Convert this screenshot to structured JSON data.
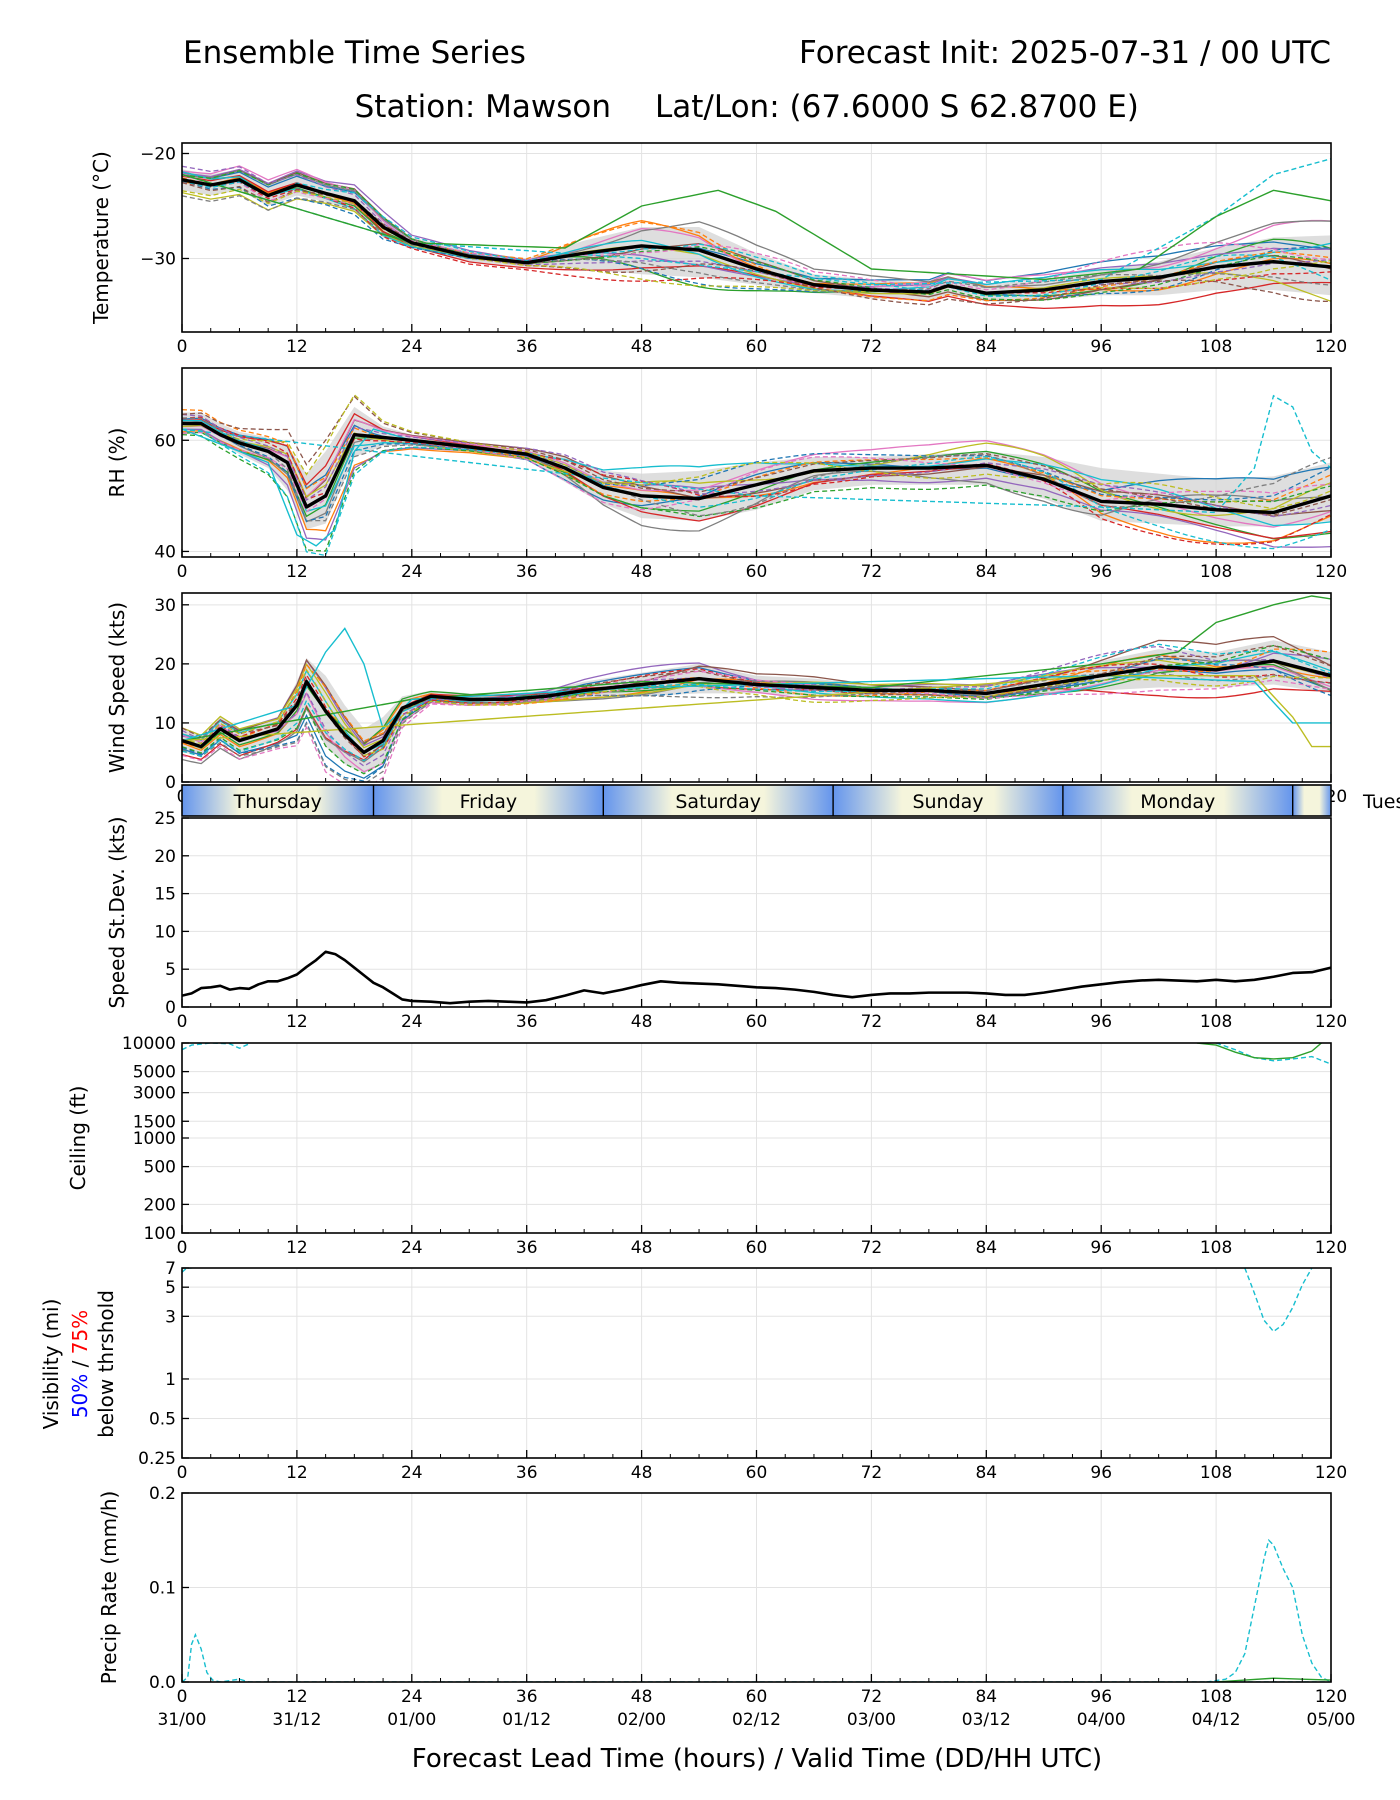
{
  "header": {
    "title_left": "Ensemble Time Series",
    "title_right": "Forecast Init: 2025-07-31 / 00 UTC",
    "station": "Station: Mawson",
    "latlon": "Lat/Lon: (67.6000 S 62.8700 E)"
  },
  "colors": {
    "mean": "#000000",
    "spread_band": "#d3d3d3",
    "members": [
      "#1f77b4",
      "#ff7f0e",
      "#2ca02c",
      "#d62728",
      "#9467bd",
      "#8c564b",
      "#e377c2",
      "#7f7f7f",
      "#bcbd22",
      "#17becf"
    ],
    "day_band_light": "#f5f5dc",
    "day_band_dark": "#6495ed",
    "visibility_50": "#0000ff",
    "visibility_75": "#ff0000"
  },
  "xaxis": {
    "label": "Forecast Lead Time (hours) / Valid Time (DD/HH UTC)",
    "range": [
      0,
      120
    ],
    "ticks": [
      0,
      12,
      24,
      36,
      48,
      60,
      72,
      84,
      96,
      108,
      120
    ],
    "tick_labels": [
      "0",
      "12",
      "24",
      "36",
      "48",
      "60",
      "72",
      "84",
      "96",
      "108",
      "120"
    ],
    "valid_labels": [
      "31/00",
      "31/12",
      "01/00",
      "01/12",
      "02/00",
      "02/12",
      "03/00",
      "03/12",
      "04/00",
      "04/12",
      "05/00"
    ]
  },
  "day_bar": {
    "days": [
      {
        "label": "Thursday",
        "start": 0,
        "end": 20
      },
      {
        "label": "Friday",
        "start": 20,
        "end": 44
      },
      {
        "label": "Saturday",
        "start": 44,
        "end": 68
      },
      {
        "label": "Sunday",
        "start": 68,
        "end": 92
      },
      {
        "label": "Monday",
        "start": 92,
        "end": 116
      },
      {
        "label": "Tues",
        "start": 116,
        "end": 140
      }
    ]
  },
  "chart_data": [
    {
      "type": "line",
      "ylabel": "Temperature (°C)",
      "ylim": [
        -37,
        -19
      ],
      "yticks": [
        -30,
        -20
      ],
      "ytick_labels": [
        "−30",
        "−20"
      ],
      "grid": true,
      "members": 20,
      "mean": {
        "x": [
          0,
          3,
          6,
          9,
          12,
          15,
          18,
          21,
          24,
          30,
          36,
          42,
          48,
          54,
          60,
          66,
          72,
          78,
          80,
          84,
          90,
          96,
          102,
          108,
          114,
          120
        ],
        "y": [
          -22.5,
          -23,
          -22.5,
          -24,
          -23,
          -23.8,
          -24.5,
          -27,
          -28.5,
          -29.8,
          -30.4,
          -29.5,
          -28.8,
          -29.2,
          -31,
          -32.5,
          -33,
          -33.2,
          -32.6,
          -33.3,
          -33,
          -32.2,
          -31.8,
          -30.8,
          -30.3,
          -30.8
        ]
      },
      "spread_low": [
        -23.5,
        -24,
        -23.5,
        -25,
        -24,
        -24.6,
        -25.5,
        -28,
        -29,
        -30.3,
        -30.8,
        -31,
        -31.5,
        -31.8,
        -32.5,
        -33.3,
        -33.8,
        -34,
        -33.5,
        -34,
        -34,
        -33.5,
        -33.5,
        -33,
        -33,
        -33.5
      ],
      "spread_high": [
        -21.5,
        -22,
        -21.5,
        -23,
        -22,
        -23,
        -23.5,
        -26,
        -28,
        -29.3,
        -30,
        -28.3,
        -27,
        -27,
        -29.5,
        -31.5,
        -32,
        -32.3,
        -31.8,
        -32.5,
        -32,
        -31,
        -30.3,
        -29,
        -28,
        -27.8
      ],
      "notable_members": [
        {
          "color": "#17becf",
          "dashed": true,
          "x": [
            0,
            24,
            48,
            72,
            96,
            102,
            108,
            114,
            120
          ],
          "y": [
            -22,
            -28.5,
            -30,
            -32.5,
            -32,
            -29,
            -26,
            -22,
            -20.5
          ]
        },
        {
          "color": "#2ca02c",
          "dashed": false,
          "x": [
            0,
            24,
            40,
            48,
            56,
            62,
            72,
            90,
            100,
            108,
            114,
            120
          ],
          "y": [
            -22,
            -28.5,
            -29,
            -25,
            -23.5,
            -25.5,
            -31,
            -32,
            -31,
            -26,
            -23.5,
            -24.5
          ]
        }
      ]
    },
    {
      "type": "line",
      "ylabel": "RH (%)",
      "ylim": [
        39,
        73
      ],
      "yticks": [
        40,
        60
      ],
      "ytick_labels": [
        "40",
        "60"
      ],
      "grid": true,
      "members": 20,
      "mean": {
        "x": [
          0,
          2,
          4,
          6,
          9,
          11,
          13,
          15,
          18,
          21,
          24,
          30,
          36,
          40,
          44,
          48,
          54,
          60,
          66,
          72,
          78,
          84,
          90,
          96,
          102,
          108,
          114,
          120
        ],
        "y": [
          63,
          63,
          61,
          59.5,
          58,
          56,
          48,
          50,
          61,
          60.5,
          60,
          58.8,
          57.5,
          55,
          51.5,
          50,
          49.5,
          52,
          54.5,
          55,
          55,
          55.5,
          53,
          49,
          48.5,
          47.5,
          47,
          50
        ]
      },
      "spread_low": [
        61.5,
        61.5,
        59.5,
        57.5,
        55,
        51,
        44,
        45,
        57,
        59,
        59,
        58,
        56.5,
        52.5,
        48.5,
        46,
        45.5,
        47.5,
        51,
        52,
        52,
        52,
        49.5,
        45.5,
        45,
        44.5,
        44.5,
        45.5
      ],
      "spread_high": [
        65,
        65,
        63,
        61.5,
        60.5,
        59,
        54,
        58,
        66,
        62.5,
        61,
        59.5,
        58.5,
        57,
        54.5,
        54,
        54.5,
        56,
        57,
        57,
        57.5,
        58,
        57,
        55,
        54,
        53,
        53.5,
        56
      ],
      "notable_members": [
        {
          "color": "#17becf",
          "dashed": true,
          "x": [
            0,
            60,
            96,
            108,
            112,
            114,
            116,
            118,
            120
          ],
          "y": [
            62,
            50,
            48,
            47,
            55,
            68,
            66,
            58,
            55
          ]
        },
        {
          "color": "#17becf",
          "dashed": false,
          "x": [
            0,
            9,
            12,
            14,
            16,
            18,
            20,
            24
          ],
          "y": [
            62,
            56,
            43,
            41,
            44,
            58,
            62,
            60
          ]
        }
      ]
    },
    {
      "type": "line",
      "ylabel": "Wind Speed (kts)",
      "ylim": [
        0,
        32
      ],
      "yticks": [
        0,
        10,
        20,
        30
      ],
      "ytick_labels": [
        "0",
        "10",
        "20",
        "30"
      ],
      "grid": true,
      "members": 20,
      "mean": {
        "x": [
          0,
          2,
          4,
          6,
          8,
          10,
          12,
          13,
          15,
          17,
          19,
          21,
          23,
          26,
          30,
          34,
          38,
          42,
          48,
          54,
          60,
          66,
          72,
          78,
          84,
          90,
          96,
          102,
          108,
          114,
          120
        ],
        "y": [
          7,
          6,
          9,
          7,
          8,
          9,
          13,
          17,
          12,
          8,
          5,
          7,
          12.5,
          14.5,
          14,
          14,
          14.5,
          15.5,
          16.5,
          17.5,
          16.5,
          16,
          15.5,
          15.5,
          15,
          16.5,
          18,
          19.5,
          19,
          20.5,
          18
        ]
      },
      "spread_low": [
        5,
        4.5,
        7,
        5,
        6,
        7,
        9,
        12,
        6,
        3,
        1.5,
        3,
        10,
        13.5,
        13,
        13,
        13.5,
        14,
        14.5,
        15,
        15,
        14.5,
        14.5,
        14.5,
        14,
        15,
        15.5,
        16,
        16,
        16.5,
        15
      ],
      "spread_high": [
        9,
        8,
        11,
        9,
        10,
        11,
        17,
        21,
        18,
        13,
        9,
        11,
        14.5,
        15.5,
        15,
        15,
        15.5,
        17,
        18.5,
        20,
        18,
        17.5,
        16.5,
        16.5,
        16,
        18,
        20.5,
        22.5,
        22,
        24,
        22
      ],
      "notable_members": [
        {
          "color": "#2ca02c",
          "dashed": false,
          "x": [
            0,
            24,
            48,
            72,
            96,
            104,
            108,
            114,
            118,
            120
          ],
          "y": [
            7,
            14,
            17,
            16,
            20,
            22,
            27,
            30,
            31.5,
            31
          ]
        },
        {
          "color": "#17becf",
          "dashed": false,
          "x": [
            0,
            12,
            15,
            17,
            19,
            21,
            24,
            48,
            96,
            112,
            116,
            120
          ],
          "y": [
            7,
            13,
            22,
            26,
            20,
            9,
            14,
            16,
            18,
            17,
            10,
            10
          ]
        },
        {
          "color": "#bcbd22",
          "dashed": false,
          "x": [
            0,
            96,
            112,
            116,
            118,
            120
          ],
          "y": [
            7,
            18,
            18,
            11,
            6,
            6
          ]
        }
      ]
    },
    {
      "type": "line",
      "ylabel": "Speed St.Dev. (kts)",
      "ylim": [
        0,
        25
      ],
      "yticks": [
        0,
        5,
        10,
        15,
        20,
        25
      ],
      "ytick_labels": [
        "0",
        "5",
        "10",
        "15",
        "20",
        "25"
      ],
      "grid": true,
      "x": [
        0,
        1,
        2,
        3,
        4,
        5,
        6,
        7,
        8,
        9,
        10,
        11,
        12,
        13,
        14,
        15,
        16,
        17,
        18,
        19,
        20,
        21,
        22,
        23,
        24,
        26,
        28,
        30,
        32,
        34,
        36,
        38,
        40,
        42,
        44,
        46,
        48,
        50,
        52,
        54,
        56,
        58,
        60,
        62,
        64,
        66,
        68,
        70,
        72,
        74,
        76,
        78,
        80,
        82,
        84,
        86,
        88,
        90,
        92,
        94,
        96,
        98,
        100,
        102,
        104,
        106,
        108,
        110,
        112,
        114,
        116,
        118,
        120
      ],
      "values": [
        1.5,
        1.8,
        2.5,
        2.6,
        2.8,
        2.3,
        2.5,
        2.4,
        3.0,
        3.4,
        3.4,
        3.8,
        4.3,
        5.3,
        6.2,
        7.3,
        7.0,
        6.2,
        5.2,
        4.2,
        3.2,
        2.6,
        1.8,
        1.0,
        0.8,
        0.7,
        0.5,
        0.7,
        0.8,
        0.7,
        0.6,
        0.9,
        1.5,
        2.2,
        1.8,
        2.3,
        2.9,
        3.4,
        3.2,
        3.1,
        3.0,
        2.8,
        2.6,
        2.5,
        2.3,
        2.0,
        1.6,
        1.3,
        1.6,
        1.8,
        1.8,
        1.9,
        1.9,
        1.9,
        1.8,
        1.6,
        1.6,
        1.9,
        2.3,
        2.7,
        3.0,
        3.3,
        3.5,
        3.6,
        3.5,
        3.4,
        3.6,
        3.4,
        3.6,
        4.0,
        4.5,
        4.6,
        5.2
      ]
    },
    {
      "type": "line",
      "scale": "log",
      "ylabel": "Ceiling (ft)",
      "ylim": [
        100,
        10000
      ],
      "yticks": [
        100,
        200,
        500,
        1000,
        1500,
        3000,
        5000,
        10000
      ],
      "ytick_labels": [
        "100",
        "200",
        "500",
        "1000",
        "1500",
        "3000",
        "5000",
        "10000"
      ],
      "grid": true,
      "members_shown": [
        {
          "color": "#17becf",
          "dashed": true,
          "x": [
            0,
            1,
            3,
            5,
            6,
            7
          ],
          "y": [
            8500,
            9500,
            10000,
            9800,
            8800,
            9800
          ]
        },
        {
          "color": "#17becf",
          "dashed": true,
          "x": [
            108,
            110,
            112,
            114,
            116,
            118,
            120
          ],
          "y": [
            10000,
            8500,
            7000,
            6500,
            6800,
            7200,
            6000
          ]
        },
        {
          "color": "#2ca02c",
          "dashed": false,
          "x": [
            106,
            108,
            110,
            112,
            114,
            116,
            118,
            119
          ],
          "y": [
            10000,
            9500,
            8000,
            7000,
            6800,
            7000,
            8200,
            10000
          ]
        }
      ]
    },
    {
      "type": "line",
      "scale": "log",
      "ylabel": "Visibility (mi)",
      "ylabel_50": "50%",
      "ylabel_sep": " / ",
      "ylabel_75": "75%",
      "ylabel_line3": "below thrshold",
      "ylim": [
        0.25,
        7
      ],
      "yticks": [
        0.25,
        0.5,
        1,
        3,
        5,
        7
      ],
      "ytick_labels": [
        "0.25",
        "0.5",
        "1",
        "3",
        "5",
        "7"
      ],
      "grid": true,
      "members_shown": [
        {
          "color": "#17becf",
          "dashed": true,
          "x": [
            0,
            0.5,
            1
          ],
          "y": [
            6.5,
            7,
            7
          ]
        },
        {
          "color": "#17becf",
          "dashed": true,
          "x": [
            111,
            112,
            113,
            114,
            115,
            116,
            117,
            118
          ],
          "y": [
            7,
            4.5,
            2.8,
            2.3,
            2.6,
            3.5,
            5.2,
            7
          ]
        }
      ]
    },
    {
      "type": "line",
      "ylabel": "Precip Rate (mm/h)",
      "ylim": [
        0,
        0.2
      ],
      "yticks": [
        0.0,
        0.1,
        0.2
      ],
      "ytick_labels": [
        "0.0",
        "0.1",
        "0.2"
      ],
      "grid": true,
      "members_shown": [
        {
          "color": "#17becf",
          "dashed": true,
          "x": [
            0,
            0.6,
            1,
            1.4,
            2,
            2.6,
            3.2,
            4,
            6,
            7,
            120
          ],
          "y": [
            0,
            0.005,
            0.04,
            0.05,
            0.035,
            0.01,
            0.002,
            0,
            0.003,
            0,
            0
          ]
        },
        {
          "color": "#17becf",
          "dashed": true,
          "x": [
            107,
            109,
            110,
            111,
            112,
            113,
            113.5,
            114,
            115,
            116,
            117,
            118,
            119,
            120
          ],
          "y": [
            0,
            0.003,
            0.01,
            0.03,
            0.08,
            0.13,
            0.15,
            0.145,
            0.12,
            0.1,
            0.05,
            0.02,
            0.005,
            0
          ]
        },
        {
          "color": "#2ca02c",
          "dashed": false,
          "x": [
            108,
            111,
            114,
            117,
            120
          ],
          "y": [
            0,
            0.002,
            0.004,
            0.003,
            0.002
          ]
        }
      ]
    }
  ]
}
